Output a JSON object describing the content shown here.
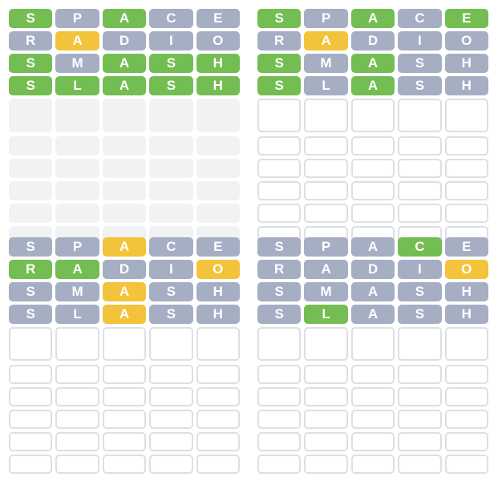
{
  "boards": [
    {
      "solved": true,
      "guesses": [
        {
          "letters": [
            "S",
            "P",
            "A",
            "C",
            "E"
          ],
          "states": [
            "g",
            "x",
            "g",
            "x",
            "x"
          ]
        },
        {
          "letters": [
            "R",
            "A",
            "D",
            "I",
            "O"
          ],
          "states": [
            "x",
            "y",
            "x",
            "x",
            "x"
          ]
        },
        {
          "letters": [
            "S",
            "M",
            "A",
            "S",
            "H"
          ],
          "states": [
            "g",
            "x",
            "g",
            "g",
            "g"
          ]
        },
        {
          "letters": [
            "S",
            "L",
            "A",
            "S",
            "H"
          ],
          "states": [
            "g",
            "g",
            "g",
            "g",
            "g"
          ]
        }
      ]
    },
    {
      "solved": false,
      "guesses": [
        {
          "letters": [
            "S",
            "P",
            "A",
            "C",
            "E"
          ],
          "states": [
            "g",
            "x",
            "g",
            "x",
            "g"
          ]
        },
        {
          "letters": [
            "R",
            "A",
            "D",
            "I",
            "O"
          ],
          "states": [
            "x",
            "y",
            "x",
            "x",
            "x"
          ]
        },
        {
          "letters": [
            "S",
            "M",
            "A",
            "S",
            "H"
          ],
          "states": [
            "g",
            "x",
            "g",
            "x",
            "x"
          ]
        },
        {
          "letters": [
            "S",
            "L",
            "A",
            "S",
            "H"
          ],
          "states": [
            "g",
            "x",
            "g",
            "x",
            "x"
          ]
        }
      ]
    },
    {
      "solved": false,
      "guesses": [
        {
          "letters": [
            "S",
            "P",
            "A",
            "C",
            "E"
          ],
          "states": [
            "x",
            "x",
            "y",
            "x",
            "x"
          ]
        },
        {
          "letters": [
            "R",
            "A",
            "D",
            "I",
            "O"
          ],
          "states": [
            "g",
            "g",
            "x",
            "x",
            "y"
          ]
        },
        {
          "letters": [
            "S",
            "M",
            "A",
            "S",
            "H"
          ],
          "states": [
            "x",
            "x",
            "y",
            "x",
            "x"
          ]
        },
        {
          "letters": [
            "S",
            "L",
            "A",
            "S",
            "H"
          ],
          "states": [
            "x",
            "x",
            "y",
            "x",
            "x"
          ]
        }
      ]
    },
    {
      "solved": false,
      "guesses": [
        {
          "letters": [
            "S",
            "P",
            "A",
            "C",
            "E"
          ],
          "states": [
            "x",
            "x",
            "x",
            "g",
            "x"
          ]
        },
        {
          "letters": [
            "R",
            "A",
            "D",
            "I",
            "O"
          ],
          "states": [
            "x",
            "x",
            "x",
            "x",
            "y"
          ]
        },
        {
          "letters": [
            "S",
            "M",
            "A",
            "S",
            "H"
          ],
          "states": [
            "x",
            "x",
            "x",
            "x",
            "x"
          ]
        },
        {
          "letters": [
            "S",
            "L",
            "A",
            "S",
            "H"
          ],
          "states": [
            "x",
            "g",
            "x",
            "x",
            "x"
          ]
        }
      ]
    }
  ],
  "colors": {
    "correct": "#74bd52",
    "present": "#f2c33b",
    "absent": "#a6aec3",
    "empty_border": "#dcdfe4",
    "solved_fill": "#f1f2f4"
  }
}
